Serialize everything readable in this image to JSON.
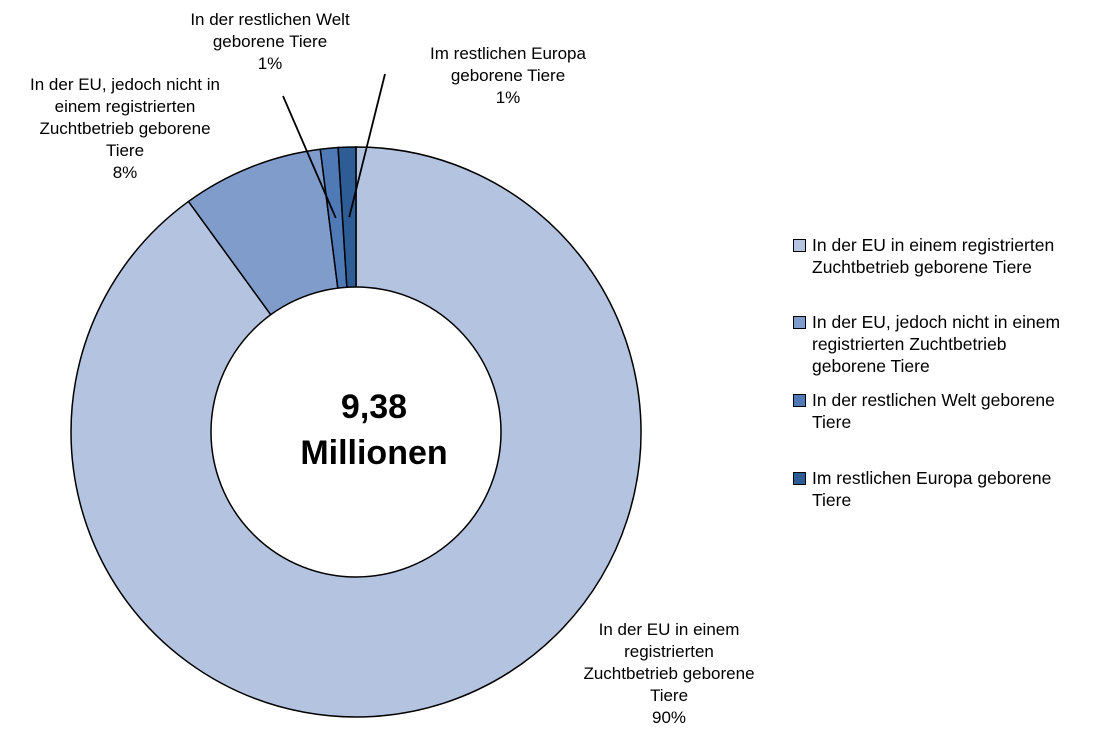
{
  "chart_data": {
    "type": "pie",
    "variant": "donut",
    "center_label": [
      "9,38",
      "Millionen"
    ],
    "legend_position": "right",
    "slices": [
      {
        "name": "In der EU in einem registrierten Zuchtbetrieb geborene Tiere",
        "value": 90,
        "label_lines": [
          "In der EU in einem",
          "registrierten",
          "Zuchtbetrieb geborene",
          "Tiere",
          "90%"
        ],
        "legend_lines": [
          "In der EU in einem registrierten",
          "Zuchtbetrieb geborene Tiere"
        ],
        "color": "#B4C4E0"
      },
      {
        "name": "In der EU, jedoch nicht in einem registrierten Zuchtbetrieb geborene Tiere",
        "value": 8,
        "label_lines": [
          "In der EU, jedoch nicht in",
          "einem registrierten",
          "Zuchtbetrieb geborene",
          "Tiere",
          "8%"
        ],
        "legend_lines": [
          "In der EU, jedoch nicht in einem",
          "registrierten Zuchtbetrieb",
          "geborene Tiere"
        ],
        "color": "#7F9CCB"
      },
      {
        "name": "In der restlichen Welt geborene Tiere",
        "value": 1,
        "label_lines": [
          "In der restlichen Welt",
          "geborene Tiere",
          "1%"
        ],
        "legend_lines": [
          "In der restlichen Welt geborene",
          "Tiere"
        ],
        "color": "#4F7AB5"
      },
      {
        "name": "Im restlichen Europa geborene Tiere",
        "value": 1,
        "label_lines": [
          "Im restlichen Europa",
          "geborene Tiere",
          "1%"
        ],
        "legend_lines": [
          "Im restlichen Europa geborene",
          "Tiere"
        ],
        "color": "#2E5C94"
      }
    ]
  }
}
